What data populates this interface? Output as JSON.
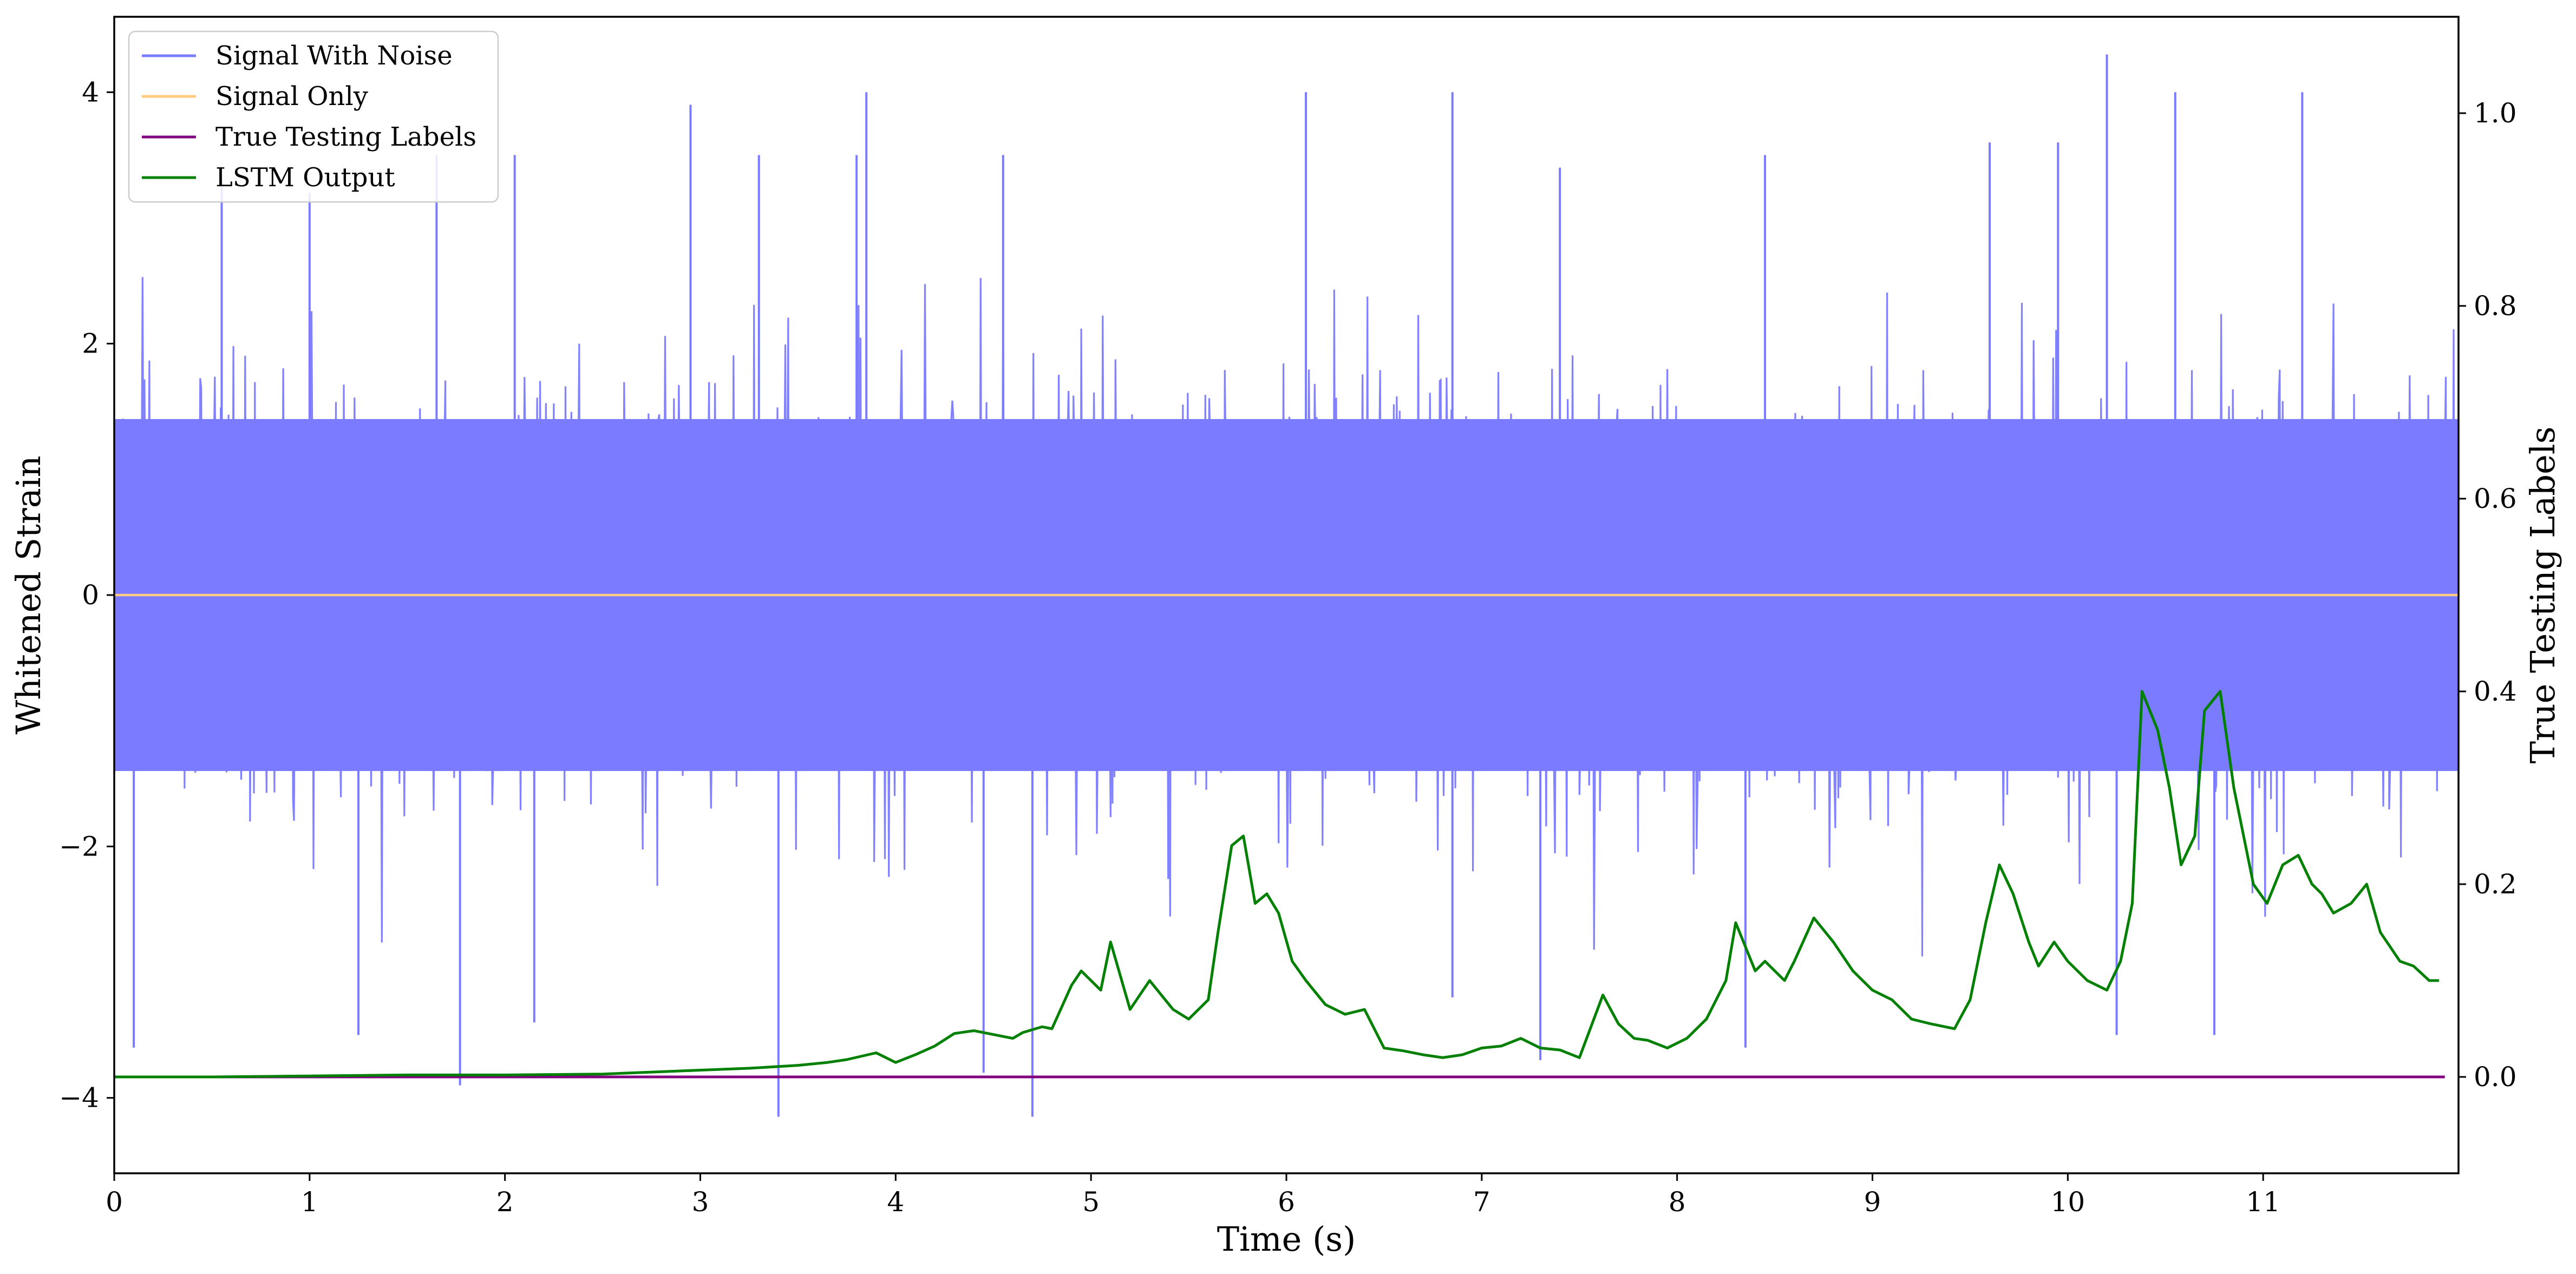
{
  "chart_data": {
    "type": "line",
    "xlabel": "Time (s)",
    "ylabel_left": "Whitened Strain",
    "ylabel_right": "True Testing Labels",
    "xlim": [
      0,
      12
    ],
    "ylim_left": [
      -4.6,
      4.6
    ],
    "ylim_right": [
      -0.1,
      1.1
    ],
    "x_ticks": [
      0,
      1,
      2,
      3,
      4,
      5,
      6,
      7,
      8,
      9,
      10,
      11
    ],
    "y_ticks_left": [
      -4,
      -2,
      0,
      2,
      4
    ],
    "y_ticks_left_labels": [
      "−4",
      "−2",
      "0",
      "2",
      "4"
    ],
    "y_ticks_right": [
      0.0,
      0.2,
      0.4,
      0.6,
      0.8,
      1.0
    ],
    "y_ticks_right_labels": [
      "0.0",
      "0.2",
      "0.4",
      "0.6",
      "0.8",
      "1.0"
    ],
    "grid": false,
    "legend_position": "top-left",
    "series": [
      {
        "name": "Signal With Noise",
        "axis": "left",
        "color": "#7b7bff",
        "description_kind": "noise",
        "band": [
          -1.4,
          1.4
        ],
        "peaks_high": [
          {
            "x": 0.55,
            "y": 3.3
          },
          {
            "x": 1.0,
            "y": 3.2
          },
          {
            "x": 1.65,
            "y": 3.5
          },
          {
            "x": 2.05,
            "y": 3.5
          },
          {
            "x": 2.95,
            "y": 3.9
          },
          {
            "x": 3.3,
            "y": 3.5
          },
          {
            "x": 3.8,
            "y": 3.5
          },
          {
            "x": 3.85,
            "y": 4.0
          },
          {
            "x": 4.55,
            "y": 3.5
          },
          {
            "x": 6.1,
            "y": 4.0
          },
          {
            "x": 6.85,
            "y": 4.0
          },
          {
            "x": 7.4,
            "y": 3.4
          },
          {
            "x": 8.45,
            "y": 3.5
          },
          {
            "x": 9.6,
            "y": 3.6
          },
          {
            "x": 9.95,
            "y": 3.6
          },
          {
            "x": 10.2,
            "y": 4.3
          },
          {
            "x": 10.55,
            "y": 4.0
          },
          {
            "x": 11.2,
            "y": 4.0
          }
        ],
        "peaks_low": [
          {
            "x": 0.1,
            "y": -3.6
          },
          {
            "x": 1.25,
            "y": -3.5
          },
          {
            "x": 1.77,
            "y": -3.9
          },
          {
            "x": 2.15,
            "y": -3.4
          },
          {
            "x": 3.4,
            "y": -4.15
          },
          {
            "x": 4.45,
            "y": -3.8
          },
          {
            "x": 4.7,
            "y": -4.15
          },
          {
            "x": 6.85,
            "y": -3.2
          },
          {
            "x": 7.3,
            "y": -3.7
          },
          {
            "x": 8.35,
            "y": -3.6
          },
          {
            "x": 10.25,
            "y": -3.5
          },
          {
            "x": 10.75,
            "y": -3.5
          }
        ]
      },
      {
        "name": "Signal Only",
        "axis": "left",
        "color": "#ffcc80",
        "x": [
          0,
          12
        ],
        "y": [
          0,
          0
        ]
      },
      {
        "name": "True Testing Labels",
        "axis": "right",
        "color": "#800080",
        "x": [
          0,
          11.93
        ],
        "y": [
          0,
          0
        ]
      },
      {
        "name": "LSTM Output",
        "axis": "right",
        "color": "#008000",
        "x": [
          0,
          0.5,
          1.0,
          1.5,
          2.0,
          2.5,
          2.75,
          3.0,
          3.25,
          3.5,
          3.65,
          3.75,
          3.9,
          4.0,
          4.1,
          4.2,
          4.3,
          4.4,
          4.5,
          4.6,
          4.65,
          4.75,
          4.8,
          4.9,
          4.95,
          5.05,
          5.1,
          5.2,
          5.3,
          5.42,
          5.5,
          5.6,
          5.65,
          5.72,
          5.78,
          5.84,
          5.9,
          5.96,
          6.03,
          6.1,
          6.2,
          6.3,
          6.4,
          6.5,
          6.6,
          6.7,
          6.8,
          6.9,
          7.0,
          7.1,
          7.2,
          7.3,
          7.4,
          7.5,
          7.62,
          7.7,
          7.78,
          7.85,
          7.95,
          8.05,
          8.15,
          8.25,
          8.3,
          8.4,
          8.45,
          8.55,
          8.6,
          8.7,
          8.8,
          8.9,
          9.0,
          9.1,
          9.2,
          9.3,
          9.42,
          9.5,
          9.58,
          9.65,
          9.72,
          9.8,
          9.85,
          9.93,
          10.0,
          10.1,
          10.2,
          10.27,
          10.33,
          10.38,
          10.46,
          10.52,
          10.58,
          10.65,
          10.7,
          10.78,
          10.85,
          10.95,
          11.02,
          11.1,
          11.18,
          11.25,
          11.3,
          11.36,
          11.45,
          11.53,
          11.6,
          11.7,
          11.77,
          11.85,
          11.9
        ],
        "y": [
          0.0,
          0.0,
          0.001,
          0.002,
          0.002,
          0.003,
          0.005,
          0.007,
          0.009,
          0.012,
          0.015,
          0.018,
          0.025,
          0.015,
          0.023,
          0.032,
          0.045,
          0.048,
          0.044,
          0.04,
          0.046,
          0.052,
          0.05,
          0.095,
          0.11,
          0.09,
          0.14,
          0.07,
          0.1,
          0.07,
          0.06,
          0.08,
          0.15,
          0.24,
          0.25,
          0.18,
          0.19,
          0.17,
          0.12,
          0.1,
          0.075,
          0.065,
          0.07,
          0.03,
          0.027,
          0.023,
          0.02,
          0.023,
          0.03,
          0.032,
          0.04,
          0.03,
          0.028,
          0.02,
          0.085,
          0.055,
          0.04,
          0.038,
          0.03,
          0.04,
          0.06,
          0.1,
          0.16,
          0.11,
          0.12,
          0.1,
          0.12,
          0.165,
          0.14,
          0.11,
          0.09,
          0.08,
          0.06,
          0.055,
          0.05,
          0.08,
          0.16,
          0.22,
          0.19,
          0.14,
          0.115,
          0.14,
          0.12,
          0.1,
          0.09,
          0.12,
          0.18,
          0.4,
          0.36,
          0.3,
          0.22,
          0.25,
          0.38,
          0.4,
          0.3,
          0.2,
          0.18,
          0.22,
          0.23,
          0.2,
          0.19,
          0.17,
          0.18,
          0.2,
          0.15,
          0.12,
          0.115,
          0.1,
          0.1
        ]
      }
    ]
  }
}
